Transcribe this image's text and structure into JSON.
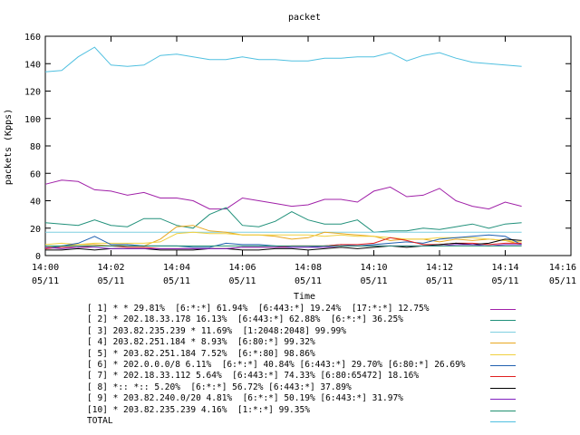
{
  "chart_data": {
    "type": "line",
    "title": "packet",
    "xlabel": "Time",
    "ylabel": "packets (Kpps)",
    "ylim": [
      0,
      160
    ],
    "xlim_minutes": [
      0,
      16
    ],
    "y_ticks": [
      "0",
      "20",
      "40",
      "60",
      "80",
      "100",
      "120",
      "140",
      "160"
    ],
    "x_ticks": [
      {
        "minute": 0,
        "time": "14:00",
        "date": "05/11"
      },
      {
        "minute": 2,
        "time": "14:02",
        "date": "05/11"
      },
      {
        "minute": 4,
        "time": "14:04",
        "date": "05/11"
      },
      {
        "minute": 6,
        "time": "14:06",
        "date": "05/11"
      },
      {
        "minute": 8,
        "time": "14:08",
        "date": "05/11"
      },
      {
        "minute": 10,
        "time": "14:10",
        "date": "05/11"
      },
      {
        "minute": 12,
        "time": "14:12",
        "date": "05/11"
      },
      {
        "minute": 14,
        "time": "14:14",
        "date": "05/11"
      },
      {
        "minute": 16,
        "time": "14:16",
        "date": "05/11"
      }
    ],
    "x_minutes": [
      0,
      0.5,
      1,
      1.5,
      2,
      2.5,
      3,
      3.5,
      4,
      4.5,
      5,
      5.5,
      6,
      6.5,
      7,
      7.5,
      8,
      8.5,
      9,
      9.5,
      10,
      10.5,
      11,
      11.5,
      12,
      12.5,
      13,
      13.5,
      14,
      14.5
    ],
    "series": [
      {
        "name": "[ 1] * * 29.81%  [6:*:*] 61.94%  [6:443:*] 19.24%  [17:*:*] 12.75%",
        "color": "#a020a8",
        "values": [
          52,
          55,
          54,
          48,
          47,
          44,
          46,
          42,
          42,
          40,
          34,
          34,
          42,
          40,
          38,
          36,
          37,
          41,
          41,
          39,
          47,
          50,
          43,
          44,
          49,
          40,
          36,
          34,
          39,
          36
        ]
      },
      {
        "name": "[ 2] * 202.18.33.178 16.13%  [6:443:*] 62.88%  [6:*:*] 36.25%",
        "color": "#20907a",
        "values": [
          24,
          23,
          22,
          26,
          22,
          21,
          27,
          27,
          22,
          20,
          30,
          35,
          22,
          21,
          25,
          32,
          26,
          23,
          23,
          26,
          17,
          18,
          18,
          20,
          19,
          21,
          23,
          20,
          23,
          24
        ]
      },
      {
        "name": "[ 3] 203.82.235.239 * 11.69%  [1:2048:2048] 99.99%",
        "color": "#7fcfe0",
        "values": [
          17,
          17,
          17,
          17,
          17,
          17,
          17,
          17,
          17,
          17,
          17,
          17,
          17,
          17,
          17,
          17,
          17,
          17,
          17,
          17,
          17,
          17,
          17,
          17,
          17,
          17,
          17,
          17,
          17,
          17
        ]
      },
      {
        "name": "[ 4] 203.82.251.184 * 8.93%  [6:80:*] 99.32%",
        "color": "#e8a820",
        "values": [
          6,
          7,
          8,
          8,
          7,
          8,
          7,
          12,
          21,
          22,
          18,
          17,
          15,
          15,
          14,
          12,
          13,
          17,
          16,
          15,
          14,
          11,
          12,
          12,
          10,
          12,
          11,
          12,
          11,
          8
        ]
      },
      {
        "name": "[ 5] * 203.82.251.184 7.52%  [6:*:80] 98.86%",
        "color": "#f0d040",
        "values": [
          8,
          9,
          8,
          9,
          9,
          9,
          9,
          10,
          16,
          17,
          16,
          16,
          15,
          15,
          15,
          15,
          15,
          14,
          15,
          14,
          14,
          13,
          12,
          12,
          13,
          13,
          13,
          12,
          11,
          10
        ]
      },
      {
        "name": "[ 6] * 202.0.0.0/8 6.11%  [6:*:*] 40.84% [6:443:*] 29.70% [6:80:*] 26.69%",
        "color": "#2060b0",
        "values": [
          5,
          7,
          9,
          14,
          8,
          8,
          7,
          7,
          7,
          6,
          6,
          9,
          8,
          8,
          7,
          6,
          6,
          7,
          8,
          7,
          8,
          9,
          10,
          9,
          12,
          13,
          14,
          15,
          14,
          8
        ]
      },
      {
        "name": "[ 7] * 202.18.33.112 5.64%  [6:443:*] 74.33% [6:80:65472] 18.16%",
        "color": "#e02020",
        "values": [
          5,
          6,
          6,
          7,
          7,
          6,
          6,
          5,
          5,
          5,
          5,
          5,
          6,
          6,
          6,
          7,
          7,
          7,
          8,
          8,
          9,
          13,
          11,
          8,
          8,
          9,
          9,
          8,
          9,
          9
        ]
      },
      {
        "name": "[ 8] *:: *:: 5.20%  [6:*:*] 56.72% [6:443:*] 37.89%",
        "color": "#000000",
        "values": [
          4,
          4,
          5,
          4,
          5,
          5,
          5,
          4,
          4,
          4,
          5,
          5,
          4,
          4,
          5,
          5,
          4,
          5,
          6,
          5,
          6,
          7,
          6,
          7,
          8,
          9,
          8,
          9,
          12,
          11
        ]
      },
      {
        "name": "[ 9] * 203.82.240.0/20 4.81%  [6:*:*] 50.19% [6:443:*] 31.97%",
        "color": "#8020c0",
        "values": [
          6,
          5,
          6,
          6,
          5,
          5,
          5,
          5,
          5,
          5,
          5,
          5,
          6,
          6,
          6,
          6,
          6,
          6,
          7,
          7,
          7,
          7,
          7,
          7,
          7,
          8,
          8,
          7,
          8,
          8
        ]
      },
      {
        "name": "[10] * 203.82.235.239 4.16%  [1:*:*] 99.35%",
        "color": "#209070",
        "values": [
          7,
          7,
          7,
          7,
          7,
          7,
          7,
          7,
          7,
          7,
          7,
          7,
          7,
          7,
          7,
          7,
          7,
          7,
          7,
          7,
          7,
          7,
          7,
          7,
          7,
          7,
          7,
          7,
          7,
          7
        ]
      },
      {
        "name": "TOTAL",
        "color": "#50c0e0",
        "values": [
          134,
          135,
          145,
          152,
          139,
          138,
          139,
          146,
          147,
          145,
          143,
          143,
          145,
          143,
          143,
          142,
          142,
          144,
          144,
          145,
          145,
          148,
          142,
          146,
          148,
          144,
          141,
          140,
          139,
          138
        ]
      }
    ]
  }
}
